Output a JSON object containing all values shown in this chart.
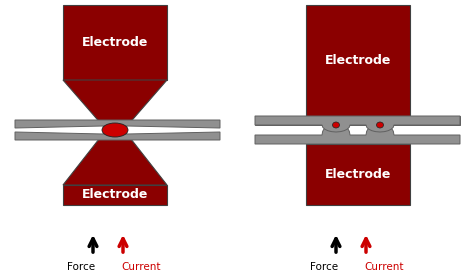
{
  "bg_color": "#ffffff",
  "electrode_color": "#8b0000",
  "wire_color": "#909090",
  "wire_edge_color": "#606060",
  "weld_spot_color": "#cc0000",
  "outline_color": "#404040",
  "text_color": "#ffffff",
  "label_color_force": "#000000",
  "label_color_current": "#cc0000",
  "electrode_text": "Electrode",
  "force_label": "Force",
  "current_label": "Current",
  "fig_width": 4.74,
  "fig_height": 2.73,
  "dpi": 100
}
